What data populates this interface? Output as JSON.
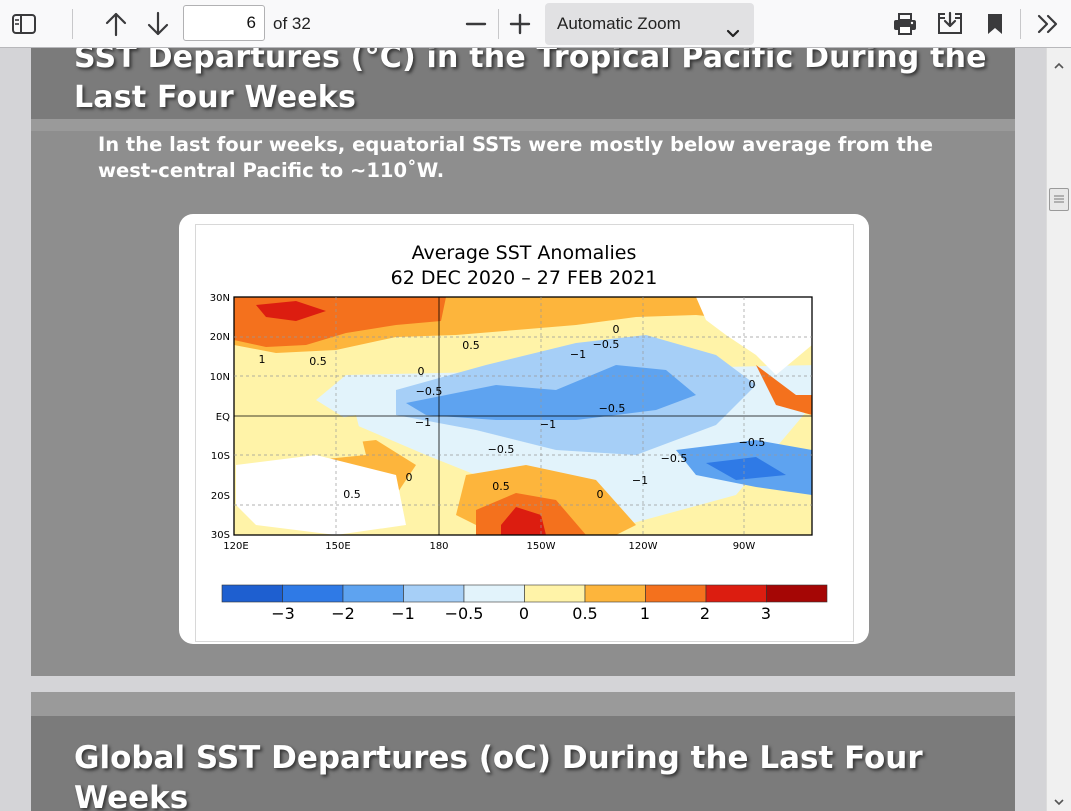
{
  "toolbar": {
    "sidebar_icon": "sidebar-toggle-icon",
    "prev_icon": "arrow-up-icon",
    "next_icon": "arrow-down-icon",
    "page_number": "6",
    "page_count": "of 32",
    "zoom_out_icon": "minus-icon",
    "zoom_in_icon": "plus-icon",
    "zoom_value": "Automatic Zoom",
    "print_icon": "print-icon",
    "download_icon": "download-icon",
    "bookmark_icon": "bookmark-icon",
    "tools_icon": "double-chevron-right-icon"
  },
  "slide1": {
    "title": "SST Departures (°C) in the Tropical Pacific During the Last Four Weeks",
    "body": "In the last four weeks, equatorial SSTs were mostly below average from the west-central Pacific to ~110˚W.",
    "figure": {
      "title": "Average SST Anomalies",
      "subtitle": "62 DEC 2020 – 27 FEB 2021",
      "lat_labels": [
        "30N",
        "20N",
        "10N",
        "EQ",
        "10S",
        "20S",
        "30S"
      ],
      "lon_labels": [
        "120E",
        "150E",
        "180",
        "150W",
        "120W",
        "90W"
      ],
      "contour_labels": [
        "1",
        "0.5",
        "0.5",
        "0",
        "−0.5",
        "−1",
        "−0.5",
        "−1",
        "−0.5",
        "−1",
        "0",
        "−0.5",
        "0",
        "−0.5",
        "−1",
        "−0.5",
        "0.5",
        "0.5",
        "0",
        "0"
      ],
      "colorbar_labels": [
        "−3",
        "−2",
        "−1",
        "−0.5",
        "0",
        "0.5",
        "1",
        "2",
        "3"
      ],
      "colorbar_colors": [
        "#1e5fd0",
        "#2f7ae6",
        "#5ea3f0",
        "#a6cff7",
        "#e2f3fb",
        "#fff3a8",
        "#fdb53c",
        "#f4711d",
        "#dc1d10",
        "#a50605"
      ]
    }
  },
  "slide2": {
    "title": "Global SST Departures (oC) During the Last Four Weeks"
  },
  "scrollbar": {
    "up_icon": "scroll-up-arrow-icon",
    "down_icon": "scroll-down-arrow-icon"
  }
}
